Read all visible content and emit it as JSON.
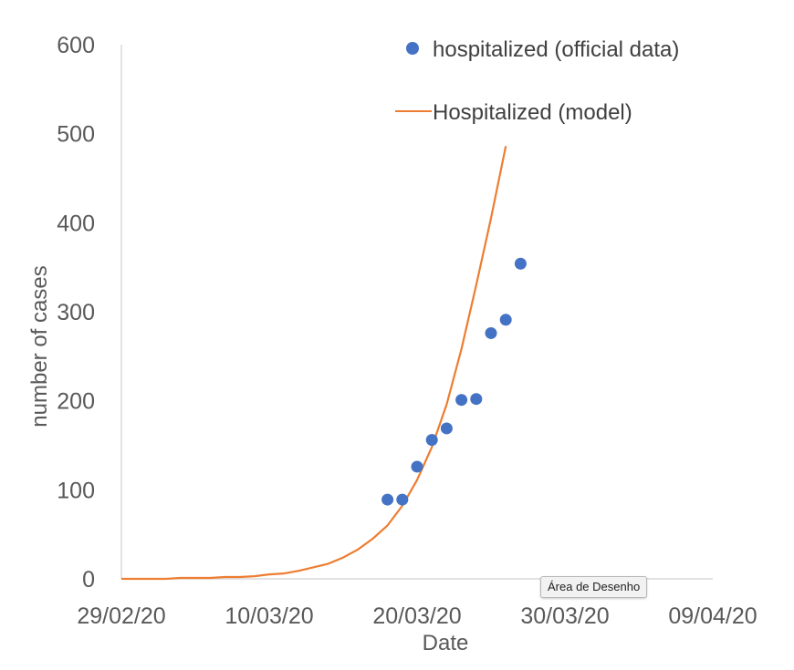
{
  "chart_data": {
    "type": "scatter",
    "title": "",
    "xlabel": "Date",
    "ylabel": "number of cases",
    "ylim": [
      0,
      600
    ],
    "yticks": [
      0,
      100,
      200,
      300,
      400,
      500,
      600
    ],
    "xlim": [
      "2020-02-29",
      "2020-04-09"
    ],
    "xticks": [
      "29/02/20",
      "10/03/20",
      "20/03/20",
      "30/03/20",
      "09/04/20"
    ],
    "grid": false,
    "legend_position": "top-right",
    "series": [
      {
        "name": "hospitalized (official data)",
        "kind": "scatter",
        "color": "#4472C4",
        "points": [
          {
            "x": "2020-03-18",
            "y": 89
          },
          {
            "x": "2020-03-19",
            "y": 89
          },
          {
            "x": "2020-03-20",
            "y": 126
          },
          {
            "x": "2020-03-21",
            "y": 156
          },
          {
            "x": "2020-03-22",
            "y": 169
          },
          {
            "x": "2020-03-23",
            "y": 201
          },
          {
            "x": "2020-03-24",
            "y": 202
          },
          {
            "x": "2020-03-25",
            "y": 276
          },
          {
            "x": "2020-03-26",
            "y": 291
          },
          {
            "x": "2020-03-27",
            "y": 354
          }
        ]
      },
      {
        "name": "Hospitalized (model)",
        "kind": "line",
        "color": "#ED7D31",
        "points": [
          {
            "x": "2020-02-29",
            "y": 0
          },
          {
            "x": "2020-03-01",
            "y": 0
          },
          {
            "x": "2020-03-02",
            "y": 0
          },
          {
            "x": "2020-03-03",
            "y": 0
          },
          {
            "x": "2020-03-04",
            "y": 1
          },
          {
            "x": "2020-03-05",
            "y": 1
          },
          {
            "x": "2020-03-06",
            "y": 1
          },
          {
            "x": "2020-03-07",
            "y": 2
          },
          {
            "x": "2020-03-08",
            "y": 2
          },
          {
            "x": "2020-03-09",
            "y": 3
          },
          {
            "x": "2020-03-10",
            "y": 5
          },
          {
            "x": "2020-03-11",
            "y": 6
          },
          {
            "x": "2020-03-12",
            "y": 9
          },
          {
            "x": "2020-03-13",
            "y": 13
          },
          {
            "x": "2020-03-14",
            "y": 17
          },
          {
            "x": "2020-03-15",
            "y": 24
          },
          {
            "x": "2020-03-16",
            "y": 33
          },
          {
            "x": "2020-03-17",
            "y": 45
          },
          {
            "x": "2020-03-18",
            "y": 60
          },
          {
            "x": "2020-03-19",
            "y": 82
          },
          {
            "x": "2020-03-20",
            "y": 111
          },
          {
            "x": "2020-03-21",
            "y": 148
          },
          {
            "x": "2020-03-22",
            "y": 196
          },
          {
            "x": "2020-03-23",
            "y": 258
          },
          {
            "x": "2020-03-24",
            "y": 330
          },
          {
            "x": "2020-03-25",
            "y": 405
          },
          {
            "x": "2020-03-26",
            "y": 486
          }
        ]
      }
    ]
  },
  "tooltip": {
    "text": "Área de Desenho"
  }
}
